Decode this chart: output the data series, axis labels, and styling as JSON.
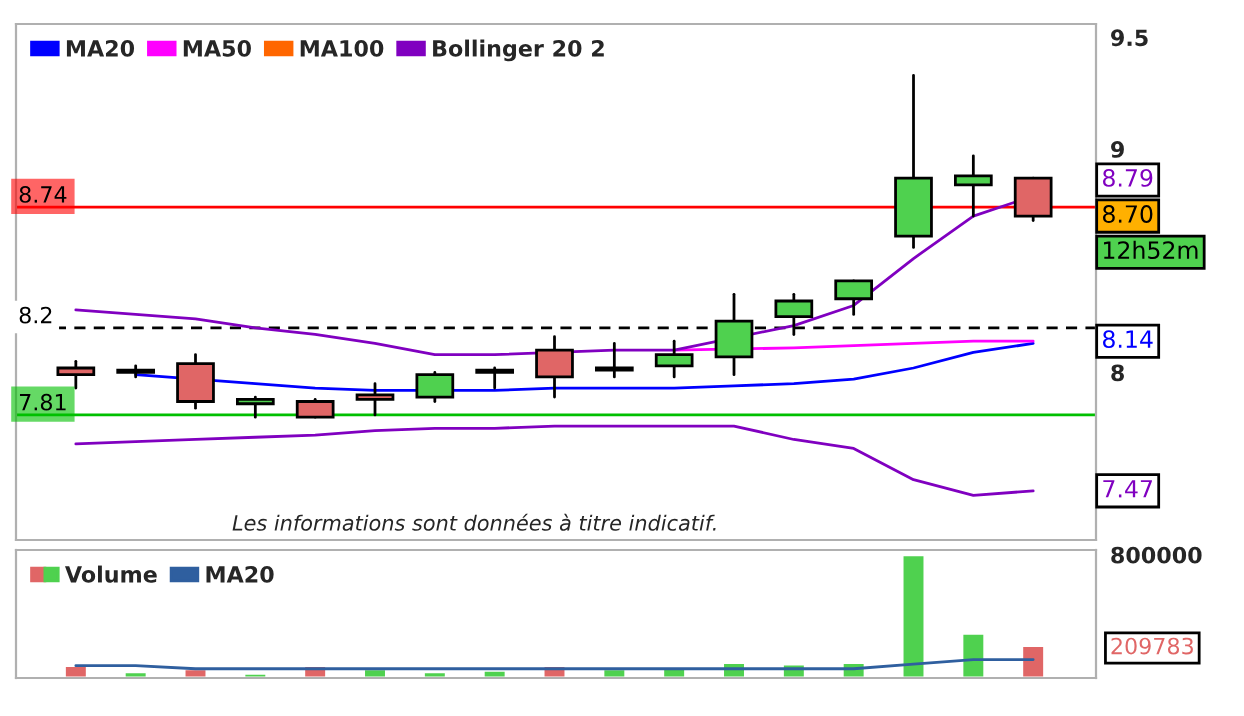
{
  "chart_data": [
    {
      "type": "candlestick",
      "categories": [
        null,
        null,
        null,
        null,
        null,
        null,
        null,
        null,
        null,
        null,
        null,
        null,
        null,
        null,
        null,
        null,
        null
      ],
      "ohlc": [
        [
          8.02,
          8.05,
          7.93,
          7.99
        ],
        [
          8.01,
          8.03,
          7.98,
          8.0
        ],
        [
          8.04,
          8.08,
          7.84,
          7.87
        ],
        [
          7.86,
          7.89,
          7.8,
          7.88
        ],
        [
          7.87,
          7.88,
          7.8,
          7.8
        ],
        [
          7.9,
          7.95,
          7.81,
          7.88
        ],
        [
          7.89,
          8.0,
          7.87,
          7.99
        ],
        [
          8.0,
          8.02,
          7.93,
          8.01
        ],
        [
          8.1,
          8.16,
          7.89,
          7.98
        ],
        [
          8.02,
          8.13,
          7.98,
          8.01
        ],
        [
          8.03,
          8.14,
          7.98,
          8.08
        ],
        [
          8.07,
          8.35,
          7.99,
          8.23
        ],
        [
          8.25,
          8.35,
          8.17,
          8.32
        ],
        [
          8.33,
          8.41,
          8.26,
          8.41
        ],
        [
          8.61,
          9.33,
          8.56,
          8.87
        ],
        [
          8.84,
          8.97,
          8.7,
          8.88
        ],
        [
          8.87,
          8.87,
          8.68,
          8.7
        ]
      ],
      "series": [
        {
          "name": "MA20",
          "type": "line",
          "color": "#0000ff",
          "values": [
            null,
            7.99,
            null,
            7.95,
            7.93,
            7.92,
            null,
            7.92,
            7.93,
            7.93,
            7.93,
            7.94,
            7.95,
            7.97,
            8.02,
            8.09,
            8.13
          ]
        },
        {
          "name": "MA50",
          "type": "line",
          "color": "#ff00ff",
          "values": [
            null,
            null,
            null,
            null,
            null,
            null,
            null,
            null,
            null,
            null,
            8.1,
            null,
            8.11,
            8.12,
            8.13,
            8.14,
            8.14
          ]
        },
        {
          "name": "MA100",
          "type": "line",
          "color": "#ff6600",
          "values": [
            null,
            null,
            null,
            null,
            null,
            null,
            null,
            null,
            null,
            null,
            null,
            null,
            null,
            null,
            null,
            null,
            null
          ]
        },
        {
          "name": "Bollinger 20 2",
          "type": "line",
          "color": "#8000c0",
          "values": [
            8.28,
            8.26,
            8.24,
            8.2,
            8.17,
            8.13,
            8.08,
            8.08,
            null,
            8.1,
            8.1,
            null,
            8.21,
            8.3,
            8.51,
            8.7,
            8.79
          ]
        },
        {
          "type": "line",
          "color": "#8000c0",
          "values": [
            7.68,
            7.69,
            7.7,
            7.71,
            7.72,
            7.74,
            7.75,
            7.75,
            7.76,
            7.76,
            7.76,
            7.76,
            7.7,
            7.66,
            7.52,
            7.45,
            7.47
          ]
        }
      ],
      "ylim": [
        7.25,
        9.56
      ],
      "yticks": [
        8,
        9,
        9.5
      ],
      "ref_lines": [
        {
          "axis": "y",
          "value": 8.74,
          "label": "8.74",
          "color": "#ff0000",
          "line_style": "solid"
        },
        {
          "axis": "y",
          "value": 8.2,
          "label": "8.2",
          "color": "#000000",
          "line_style": "dashed"
        },
        {
          "axis": "y",
          "value": 7.81,
          "label": "7.81",
          "color": "#00c000",
          "line_style": "solid"
        }
      ],
      "annotations": [
        "8.79",
        "8.70",
        {
          "text": "8.14",
          "y": 8.14
        },
        {
          "text": "7.47",
          "y": 7.47
        },
        "12h52m",
        "Les informations sont données à titre indicatif."
      ],
      "legend": "top left",
      "grid": false
    },
    {
      "type": "bar",
      "categories": [
        null,
        null,
        null,
        null,
        null,
        null,
        null,
        null,
        null,
        null,
        null,
        null,
        null,
        null,
        null,
        null,
        null
      ],
      "series": [
        {
          "name": "Volume",
          "type": "bar",
          "colors": [
            "#e06666",
            "#4fd14f",
            "#e06666",
            "#4fd14f",
            "#e06666",
            "#4fd14f",
            "#4fd14f",
            "#4fd14f",
            "#e06666",
            "#4fd14f",
            "#4fd14f",
            "#4fd14f",
            "#4fd14f",
            "#4fd14f",
            "#4fd14f",
            "#4fd14f",
            "#e06666"
          ],
          "values": [
            80000,
            40000,
            60000,
            30000,
            80000,
            60000,
            40000,
            50000,
            80000,
            60000,
            70000,
            100000,
            90000,
            100000,
            800000,
            290000,
            209783
          ]
        },
        {
          "name": "MA20",
          "type": "line",
          "color": "#2f5f9f",
          "values": [
            80000,
            80000,
            60000,
            60000,
            60000,
            60000,
            60000,
            60000,
            60000,
            60000,
            60000,
            60000,
            60000,
            60000,
            90000,
            120000,
            120000
          ]
        }
      ],
      "ylim": [
        0,
        831000
      ],
      "yticks": [
        {
          "value": 209783,
          "label": "209783"
        },
        800000
      ],
      "legend": "top left",
      "grid": false
    }
  ]
}
